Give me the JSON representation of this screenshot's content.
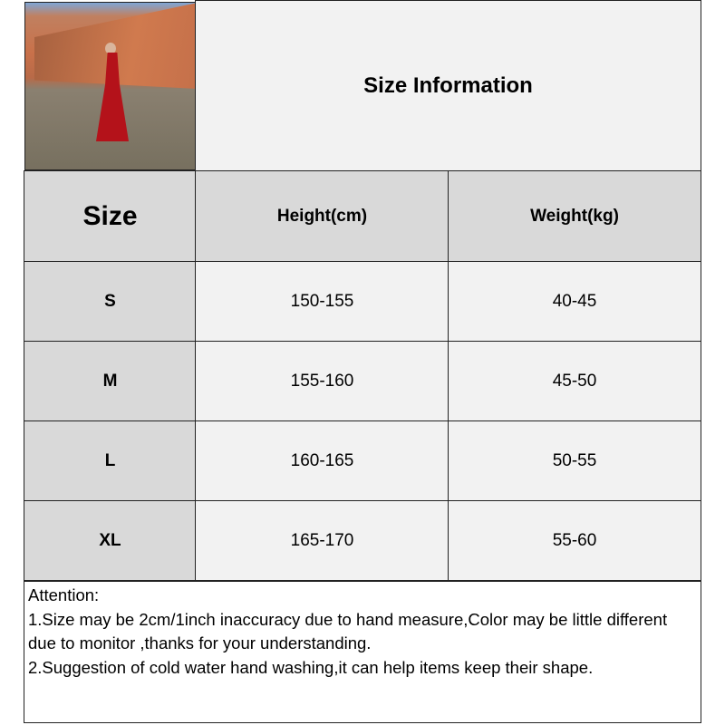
{
  "title": "Size Information",
  "headers": [
    "Size",
    "Height(cm)",
    "Weight(kg)"
  ],
  "rows": [
    {
      "size": "S",
      "height": "150-155",
      "weight": "40-45"
    },
    {
      "size": "M",
      "height": "155-160",
      "weight": "45-50"
    },
    {
      "size": "L",
      "height": "160-165",
      "weight": "50-55"
    },
    {
      "size": "XL",
      "height": "165-170",
      "weight": "55-60"
    }
  ],
  "notes": {
    "heading": "Attention:",
    "line1": "1.Size may be 2cm/1inch inaccuracy due to hand measure,Color may be little different due to monitor ,thanks for your understanding.",
    "line2": "2.Suggestion of cold water hand washing,it can help items keep their shape."
  },
  "colors": {
    "header_bg": "#d9d9d9",
    "cell_bg": "#f2f2f2",
    "border": "#222222"
  }
}
